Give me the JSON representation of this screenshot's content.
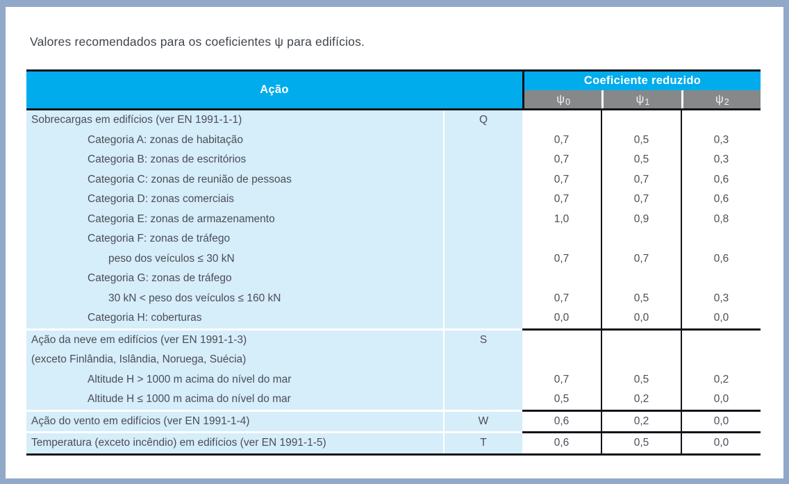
{
  "title": "Valores recomendados para os coeficientes ψ para edifícios.",
  "colors": {
    "header_blue": "#00acec",
    "subheader_gray": "#87888a",
    "row_light_blue": "#d6edfa",
    "text_dark": "#4a4e57",
    "frame_border": "#92a8c8",
    "rule_black": "#13131b"
  },
  "table": {
    "header": {
      "action": "Ação",
      "reduced_coefficient": "Coeficiente reduzido",
      "psi": [
        {
          "base": "ψ",
          "sub": "0"
        },
        {
          "base": "ψ",
          "sub": "1"
        },
        {
          "base": "ψ",
          "sub": "2"
        }
      ]
    },
    "rows": [
      {
        "label": "Sobrecargas em edifícios (ver EN 1991-1-1)",
        "indent": 0,
        "symbol": "Q",
        "values": [
          "",
          "",
          ""
        ]
      },
      {
        "label": "Categoria A: zonas de habitação",
        "indent": 1,
        "symbol": "",
        "values": [
          "0,7",
          "0,5",
          "0,3"
        ]
      },
      {
        "label": "Categoria B: zonas de escritórios",
        "indent": 1,
        "symbol": "",
        "values": [
          "0,7",
          "0,5",
          "0,3"
        ]
      },
      {
        "label": "Categoria C: zonas de reunião de pessoas",
        "indent": 1,
        "symbol": "",
        "values": [
          "0,7",
          "0,7",
          "0,6"
        ]
      },
      {
        "label": "Categoria D: zonas comerciais",
        "indent": 1,
        "symbol": "",
        "values": [
          "0,7",
          "0,7",
          "0,6"
        ]
      },
      {
        "label": "Categoria E: zonas de armazenamento",
        "indent": 1,
        "symbol": "",
        "values": [
          "1,0",
          "0,9",
          "0,8"
        ]
      },
      {
        "label": "Categoria F: zonas de tráfego",
        "indent": 1,
        "symbol": "",
        "values": [
          "",
          "",
          ""
        ]
      },
      {
        "label": "peso dos veículos ≤ 30 kN",
        "indent": 2,
        "symbol": "",
        "values": [
          "0,7",
          "0,7",
          "0,6"
        ]
      },
      {
        "label": "Categoria G: zonas de tráfego",
        "indent": 1,
        "symbol": "",
        "values": [
          "",
          "",
          ""
        ]
      },
      {
        "label": "30 kN < peso dos veículos ≤ 160 kN",
        "indent": 2,
        "symbol": "",
        "values": [
          "0,7",
          "0,5",
          "0,3"
        ]
      },
      {
        "label": "Categoria H: coberturas",
        "indent": 1,
        "symbol": "",
        "values": [
          "0,0",
          "0,0",
          "0,0"
        ]
      },
      {
        "label": "Ação da neve em edifícios (ver EN 1991-1-3)",
        "indent": 0,
        "symbol": "S",
        "divider_before": true,
        "values": [
          "",
          "",
          ""
        ]
      },
      {
        "label": "(exceto Finlândia, Islândia, Noruega, Suécia)",
        "indent": 0,
        "symbol": "",
        "values": [
          "",
          "",
          ""
        ]
      },
      {
        "label": "Altitude H > 1000 m acima do nível do mar",
        "indent": 1,
        "symbol": "",
        "values": [
          "0,7",
          "0,5",
          "0,2"
        ]
      },
      {
        "label": "Altitude H ≤ 1000 m acima do nível do mar",
        "indent": 1,
        "symbol": "",
        "values": [
          "0,5",
          "0,2",
          "0,0"
        ]
      },
      {
        "label": "Ação do vento em edifícios (ver EN 1991-1-4)",
        "indent": 0,
        "symbol": "W",
        "divider_before": true,
        "values": [
          "0,6",
          "0,2",
          "0,0"
        ]
      },
      {
        "label": "Temperatura (exceto incêndio) em edifícios (ver EN 1991-1-5)",
        "indent": 0,
        "symbol": "T",
        "divider_before": true,
        "values": [
          "0,6",
          "0,5",
          "0,0"
        ]
      }
    ]
  }
}
